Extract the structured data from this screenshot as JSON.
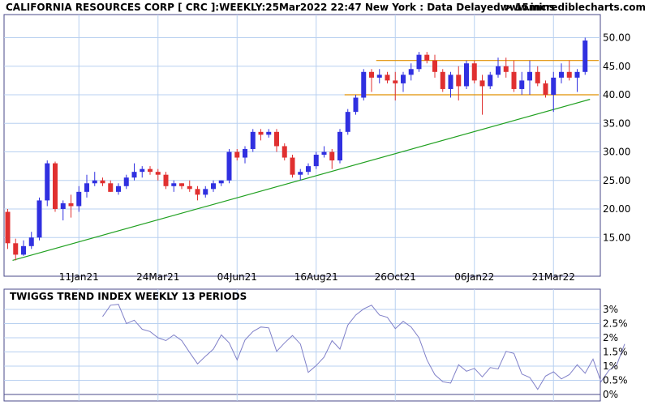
{
  "header": {
    "title": "CALIFORNIA RESOURCES CORP [ CRC ]:WEEKLY:25Mar2022 22:47 New York : Data Delayed > 15mins",
    "site": "www.incrediblecharts.com"
  },
  "chart_data": [
    {
      "type": "candlestick",
      "title": "CALIFORNIA RESOURCES CORP [ CRC ]:WEEKLY:25Mar2022 22:47 New York : Data Delayed > 15mins",
      "ylim": [
        10,
        54
      ],
      "y_ticks": [
        "15.00",
        "20.00",
        "25.00",
        "30.00",
        "35.00",
        "40.00",
        "45.00",
        "50.00"
      ],
      "y_tick_values": [
        15,
        20,
        25,
        30,
        35,
        40,
        45,
        50
      ],
      "x_tick_labels": [
        "11Jan21",
        "24Mar21",
        "04Jun21",
        "16Aug21",
        "26Oct21",
        "06Jan22",
        "21Mar22"
      ],
      "x_tick_index": [
        9,
        19,
        29,
        39,
        49,
        59,
        69
      ],
      "grid": true,
      "colors": {
        "up": "#3030e0",
        "down": "#e03030",
        "support": "#e09000",
        "trend": "#20a020"
      },
      "candles": [
        [
          19.5,
          20.0,
          13.0,
          14.0
        ],
        [
          14.0,
          14.8,
          11.0,
          12.0
        ],
        [
          12.0,
          14.5,
          11.8,
          13.5
        ],
        [
          13.5,
          16.0,
          13.0,
          15.0
        ],
        [
          15.0,
          22.0,
          14.5,
          21.5
        ],
        [
          21.5,
          28.5,
          20.5,
          28.0
        ],
        [
          28.0,
          28.3,
          19.5,
          20.0
        ],
        [
          20.0,
          21.5,
          18.0,
          21.0
        ],
        [
          21.0,
          22.5,
          18.5,
          20.5
        ],
        [
          20.5,
          24.0,
          19.5,
          23.0
        ],
        [
          23.0,
          26.0,
          22.0,
          24.5
        ],
        [
          24.5,
          26.5,
          24.0,
          25.0
        ],
        [
          25.0,
          25.5,
          24.0,
          24.5
        ],
        [
          24.5,
          25.0,
          23.0,
          23.0
        ],
        [
          23.0,
          24.5,
          22.5,
          24.0
        ],
        [
          24.0,
          26.0,
          23.5,
          25.5
        ],
        [
          25.5,
          28.0,
          25.0,
          26.5
        ],
        [
          26.5,
          27.5,
          25.5,
          27.0
        ],
        [
          27.0,
          27.5,
          26.0,
          26.5
        ],
        [
          26.5,
          27.0,
          25.0,
          26.0
        ],
        [
          26.0,
          26.5,
          23.5,
          24.0
        ],
        [
          24.0,
          25.0,
          23.0,
          24.5
        ],
        [
          24.5,
          24.5,
          23.5,
          24.0
        ],
        [
          24.0,
          25.0,
          23.0,
          23.5
        ],
        [
          23.5,
          24.0,
          21.5,
          22.5
        ],
        [
          22.5,
          24.0,
          22.0,
          23.5
        ],
        [
          23.5,
          25.0,
          23.0,
          24.5
        ],
        [
          24.5,
          25.0,
          24.0,
          25.0
        ],
        [
          25.0,
          30.5,
          24.5,
          30.0
        ],
        [
          30.0,
          30.5,
          28.5,
          29.0
        ],
        [
          29.0,
          31.0,
          28.0,
          30.5
        ],
        [
          30.5,
          34.0,
          30.0,
          33.5
        ],
        [
          33.5,
          34.0,
          32.0,
          33.0
        ],
        [
          33.0,
          34.0,
          32.5,
          33.5
        ],
        [
          33.5,
          34.0,
          30.0,
          31.0
        ],
        [
          31.0,
          31.5,
          28.5,
          29.0
        ],
        [
          29.0,
          29.5,
          25.5,
          26.0
        ],
        [
          26.0,
          27.0,
          25.0,
          26.5
        ],
        [
          26.5,
          28.0,
          26.0,
          27.5
        ],
        [
          27.5,
          30.0,
          27.0,
          29.5
        ],
        [
          29.5,
          31.0,
          29.0,
          30.0
        ],
        [
          30.0,
          30.5,
          27.0,
          28.5
        ],
        [
          28.5,
          34.0,
          28.0,
          33.5
        ],
        [
          33.5,
          37.5,
          33.0,
          37.0
        ],
        [
          37.0,
          40.0,
          36.5,
          39.5
        ],
        [
          39.5,
          44.5,
          39.0,
          44.0
        ],
        [
          44.0,
          44.5,
          40.5,
          43.0
        ],
        [
          43.0,
          44.5,
          42.0,
          43.5
        ],
        [
          43.5,
          44.0,
          42.0,
          42.5
        ],
        [
          42.5,
          44.0,
          39.0,
          42.0
        ],
        [
          42.0,
          44.0,
          40.5,
          43.5
        ],
        [
          43.5,
          45.5,
          42.5,
          44.5
        ],
        [
          44.5,
          47.5,
          44.0,
          47.0
        ],
        [
          47.0,
          47.5,
          45.5,
          46.0
        ],
        [
          46.0,
          47.0,
          43.0,
          44.0
        ],
        [
          44.0,
          44.5,
          40.5,
          41.0
        ],
        [
          41.0,
          44.0,
          39.5,
          43.5
        ],
        [
          43.5,
          45.0,
          39.0,
          41.5
        ],
        [
          41.5,
          46.0,
          41.0,
          45.5
        ],
        [
          45.5,
          46.0,
          42.0,
          42.5
        ],
        [
          42.5,
          43.5,
          36.5,
          41.5
        ],
        [
          41.5,
          44.0,
          41.0,
          43.5
        ],
        [
          43.5,
          46.5,
          43.0,
          45.0
        ],
        [
          45.0,
          46.5,
          43.0,
          44.0
        ],
        [
          44.0,
          46.0,
          40.5,
          41.0
        ],
        [
          41.0,
          44.0,
          40.0,
          42.5
        ],
        [
          42.5,
          46.0,
          40.0,
          44.0
        ],
        [
          44.0,
          45.0,
          41.5,
          42.0
        ],
        [
          42.0,
          42.5,
          39.5,
          40.0
        ],
        [
          40.0,
          44.0,
          37.0,
          43.0
        ],
        [
          43.0,
          45.5,
          42.0,
          44.0
        ],
        [
          44.0,
          46.0,
          42.5,
          43.0
        ],
        [
          43.0,
          44.5,
          40.5,
          44.0
        ],
        [
          44.0,
          50.0,
          43.5,
          49.5
        ]
      ],
      "trend_line": {
        "from": [
          0,
          11.0
        ],
        "to": [
          73,
          39.2
        ]
      },
      "support_lines": [
        {
          "value": 46.0,
          "from_index": 47,
          "to_index": 79
        },
        {
          "value": 40.0,
          "from_index": 43,
          "to_index": 79
        }
      ]
    },
    {
      "type": "line",
      "title": "TWIGGS TREND INDEX WEEKLY 13 PERIODS",
      "ylim": [
        -0.0001,
        0.033
      ],
      "y_ticks": [
        "3%",
        "2.5%",
        "2%",
        "1.5%",
        "1%",
        "0.5%",
        "0%"
      ],
      "y_tick_values": [
        0.03,
        0.025,
        0.02,
        0.015,
        0.01,
        0.005,
        0.0
      ],
      "color": "#8080c8",
      "start_index": 12,
      "values": [
        0.0275,
        0.0315,
        0.0318,
        0.025,
        0.0262,
        0.023,
        0.0222,
        0.02,
        0.019,
        0.021,
        0.019,
        0.0148,
        0.0108,
        0.0135,
        0.016,
        0.021,
        0.0182,
        0.0122,
        0.0192,
        0.0222,
        0.0238,
        0.0235,
        0.0152,
        0.0182,
        0.0208,
        0.0178,
        0.0078,
        0.0102,
        0.0132,
        0.019,
        0.016,
        0.0245,
        0.028,
        0.0302,
        0.0315,
        0.028,
        0.0272,
        0.0232,
        0.0258,
        0.0238,
        0.02,
        0.0122,
        0.007,
        0.0045,
        0.004,
        0.0105,
        0.0082,
        0.0092,
        0.0062,
        0.0095,
        0.009,
        0.0152,
        0.0145,
        0.0072,
        0.006,
        0.0018,
        0.0065,
        0.008,
        0.0055,
        0.007,
        0.0105,
        0.0075,
        0.0125,
        0.0045,
        0.0085,
        0.0105,
        0.0178
      ]
    }
  ]
}
